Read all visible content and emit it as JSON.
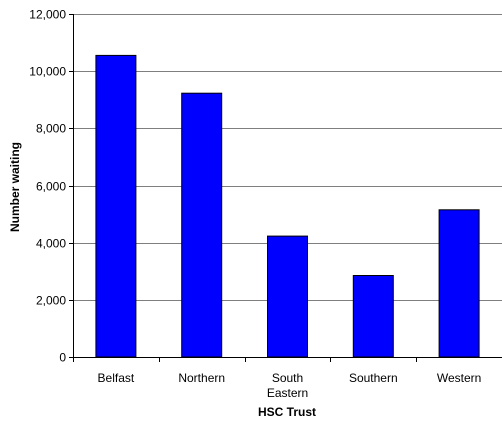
{
  "chart_data": {
    "type": "bar",
    "title": "",
    "xlabel": "HSC Trust",
    "ylabel": "Number waiting",
    "categories": [
      [
        "Belfast"
      ],
      [
        "Northern"
      ],
      [
        "South",
        "Eastern"
      ],
      [
        "Southern"
      ],
      [
        "Western"
      ]
    ],
    "values": [
      10550,
      9230,
      4230,
      2850,
      5150
    ],
    "ylim": [
      0,
      12000
    ],
    "yticks": [
      0,
      2000,
      4000,
      6000,
      8000,
      10000,
      12000
    ],
    "ytick_labels": [
      "0",
      "2,000",
      "4,000",
      "6,000",
      "8,000",
      "10,000",
      "12,000"
    ],
    "grid": true,
    "legend": "none",
    "colors": {
      "bar_fill": "#0000FF",
      "bar_stroke": "#000000",
      "grid": "#000000"
    }
  }
}
